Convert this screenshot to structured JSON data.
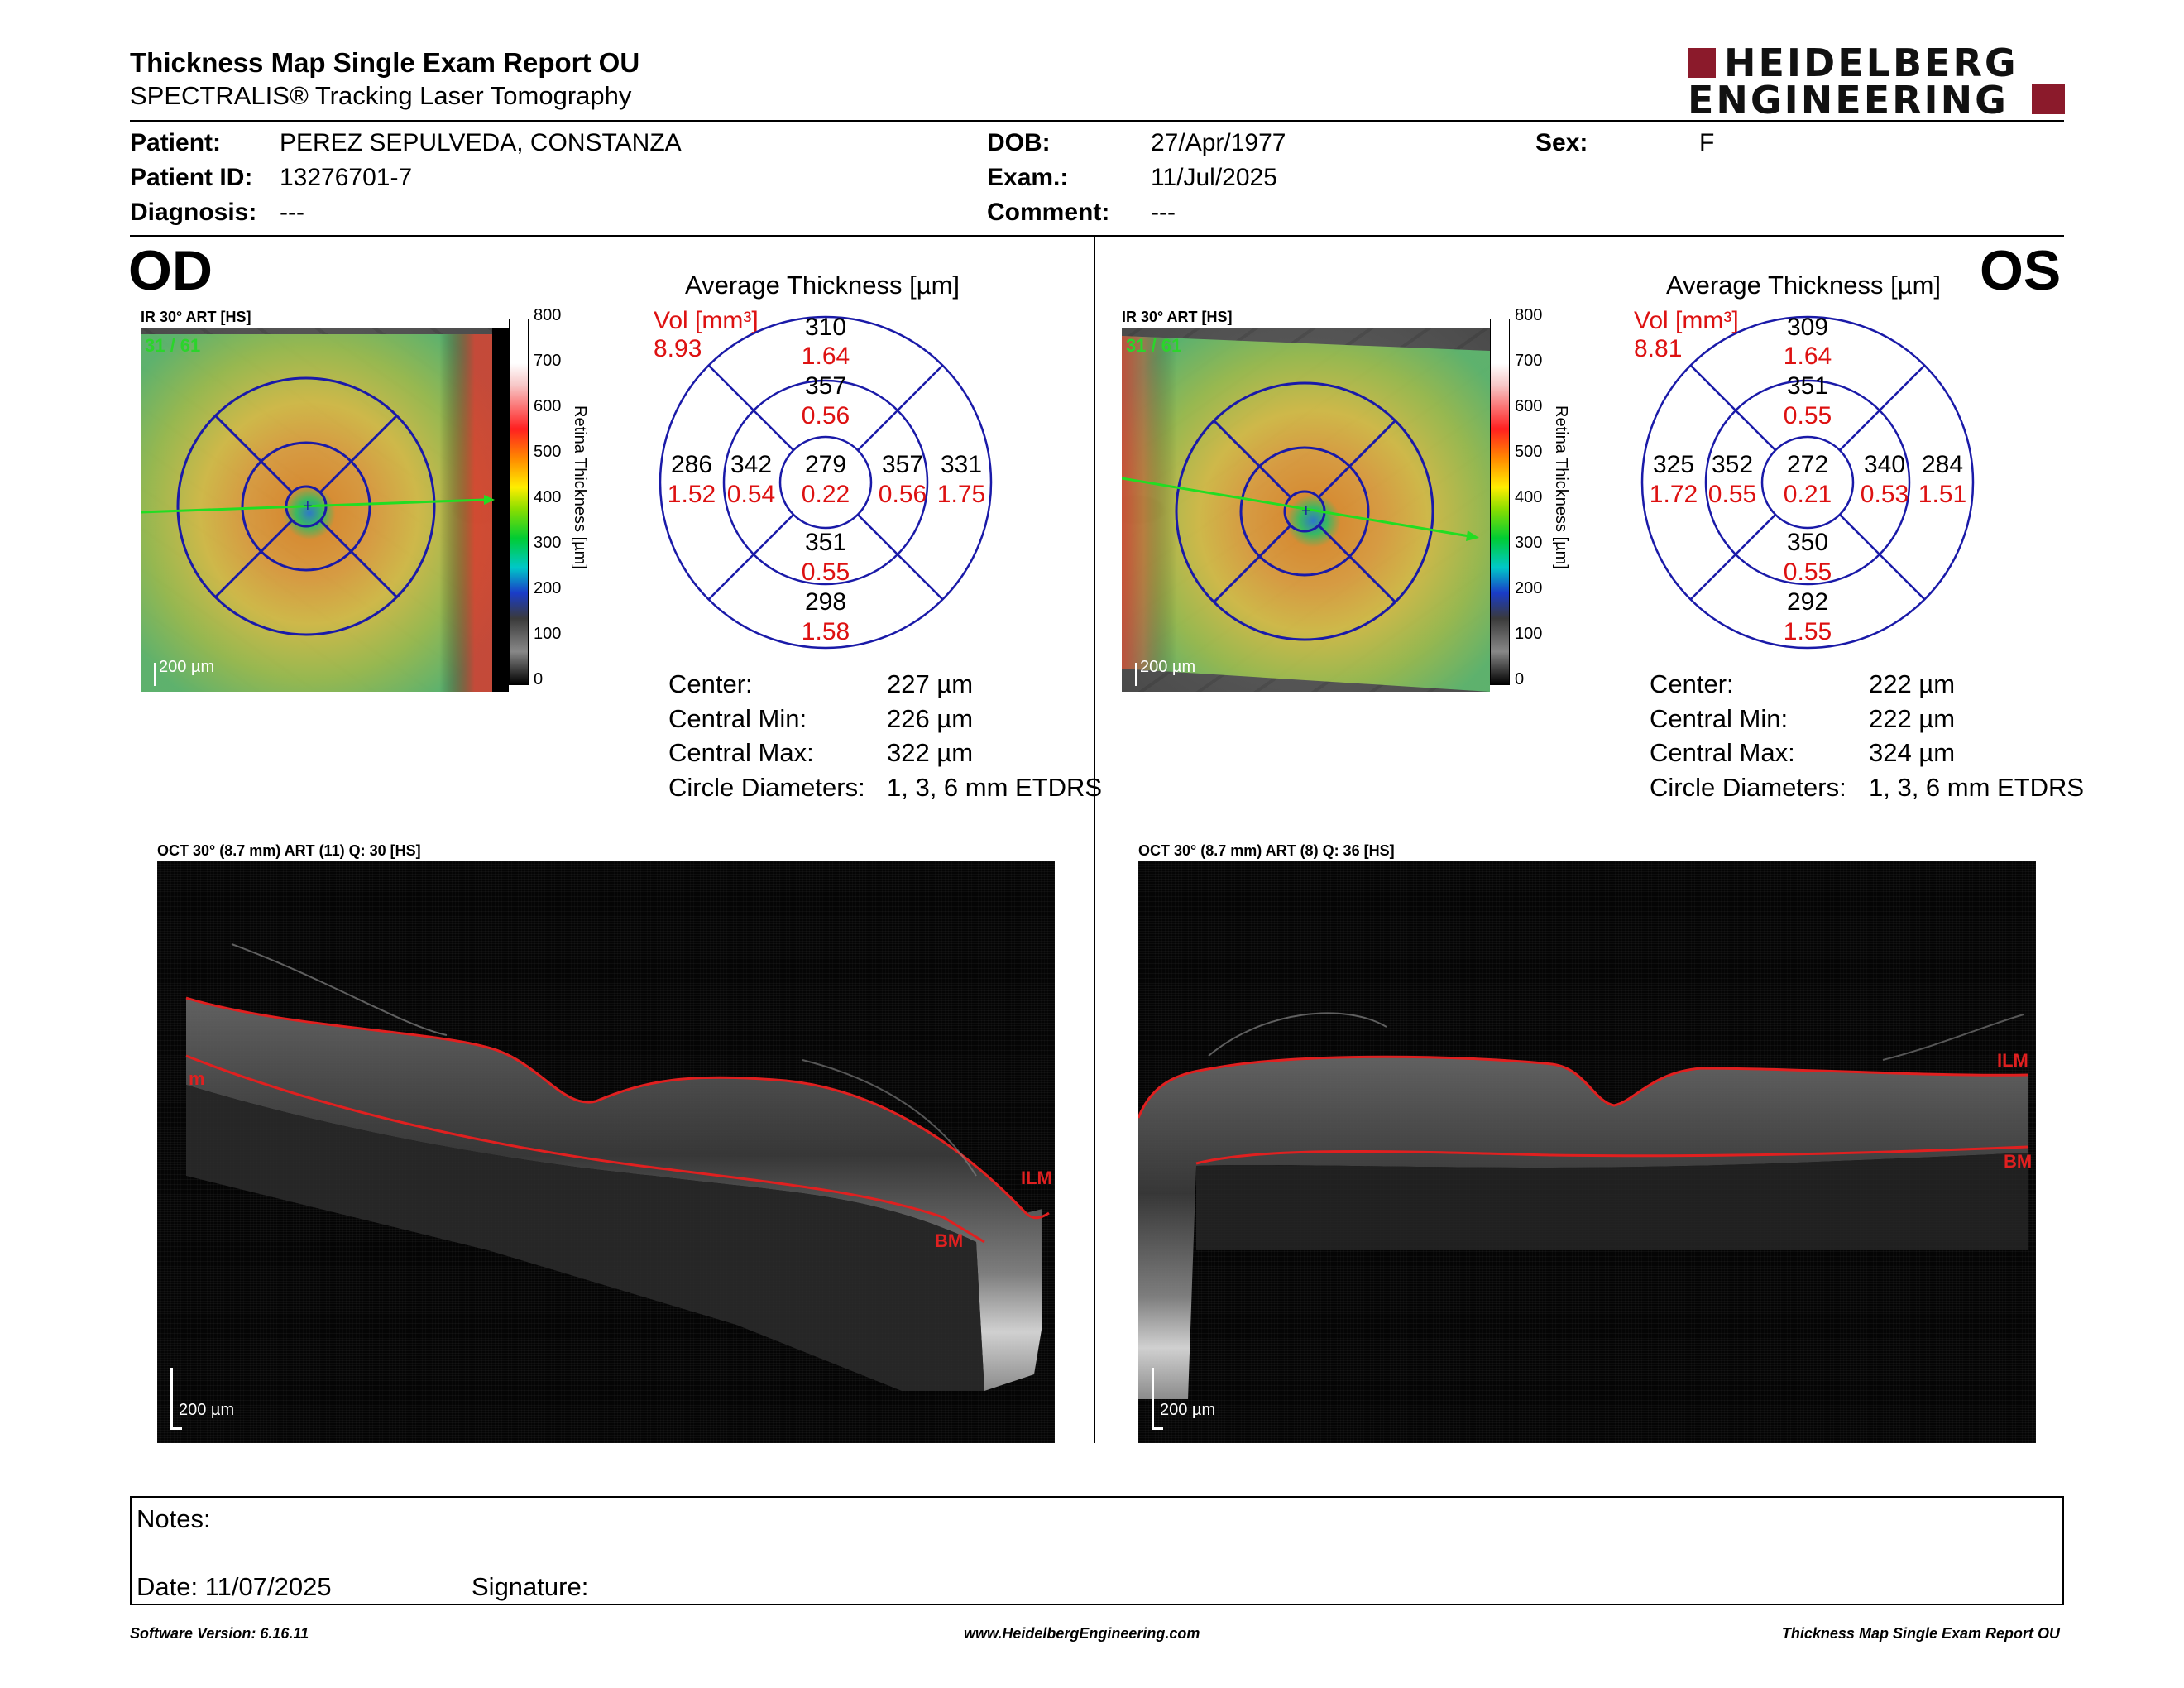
{
  "header": {
    "title": "Thickness Map Single Exam Report OU",
    "subtitle": "SPECTRALIS® Tracking Laser Tomography",
    "logo_line1": "HEIDELBERG",
    "logo_line2": "ENGINEERING",
    "brand_color": "#8b1a2b"
  },
  "patient": {
    "patient_label": "Patient:",
    "patient_value": "PEREZ SEPULVEDA, CONSTANZA",
    "id_label": "Patient ID:",
    "id_value": "13276701-7",
    "diagnosis_label": "Diagnosis:",
    "diagnosis_value": "---",
    "dob_label": "DOB:",
    "dob_value": "27/Apr/1977",
    "exam_label": "Exam.:",
    "exam_value": "11/Jul/2025",
    "comment_label": "Comment:",
    "comment_value": "---",
    "sex_label": "Sex:",
    "sex_value": "F"
  },
  "od": {
    "eye_label": "OD",
    "ir_caption": "IR 30° ART [HS]",
    "ir_overlay": "31 / 61",
    "scale_label": "200 µm",
    "colorbar_ticks": [
      "800",
      "700",
      "600",
      "500",
      "400",
      "300",
      "200",
      "100",
      "0"
    ],
    "colorbar_label": "Retina Thickness [µm]",
    "avg_title": "Average Thickness [µm]",
    "vol_label": "Vol [mm³]",
    "vol_value": "8.93",
    "etdrs": {
      "center_t": "279",
      "center_v": "0.22",
      "inner_sup_t": "357",
      "inner_sup_v": "0.56",
      "inner_inf_t": "351",
      "inner_inf_v": "0.55",
      "inner_left_t": "342",
      "inner_left_v": "0.54",
      "inner_right_t": "357",
      "inner_right_v": "0.56",
      "outer_sup_t": "310",
      "outer_sup_v": "1.64",
      "outer_inf_t": "298",
      "outer_inf_v": "1.58",
      "outer_left_t": "286",
      "outer_left_v": "1.52",
      "outer_right_t": "331",
      "outer_right_v": "1.75"
    },
    "stats": {
      "center_label": "Center:",
      "center_value": "227 µm",
      "min_label": "Central Min:",
      "min_value": "226 µm",
      "max_label": "Central Max:",
      "max_value": "322 µm",
      "diam_label": "Circle Diameters:",
      "diam_value": "1, 3, 6 mm ETDRS"
    },
    "oct_caption": "OCT 30° (8.7 mm) ART (11) Q: 30 [HS]",
    "oct_scale": "200 µm",
    "oct_labels": {
      "ilm": "ILM",
      "bm": "BM",
      "edge": "m"
    }
  },
  "os": {
    "eye_label": "OS",
    "ir_caption": "IR 30° ART [HS]",
    "ir_overlay": "31 / 61",
    "scale_label": "200 µm",
    "colorbar_ticks": [
      "800",
      "700",
      "600",
      "500",
      "400",
      "300",
      "200",
      "100",
      "0"
    ],
    "colorbar_label": "Retina Thickness [µm]",
    "avg_title": "Average Thickness [µm]",
    "vol_label": "Vol [mm³]",
    "vol_value": "8.81",
    "etdrs": {
      "center_t": "272",
      "center_v": "0.21",
      "inner_sup_t": "351",
      "inner_sup_v": "0.55",
      "inner_inf_t": "350",
      "inner_inf_v": "0.55",
      "inner_left_t": "352",
      "inner_left_v": "0.55",
      "inner_right_t": "340",
      "inner_right_v": "0.53",
      "outer_sup_t": "309",
      "outer_sup_v": "1.64",
      "outer_inf_t": "292",
      "outer_inf_v": "1.55",
      "outer_left_t": "325",
      "outer_left_v": "1.72",
      "outer_right_t": "284",
      "outer_right_v": "1.51"
    },
    "stats": {
      "center_label": "Center:",
      "center_value": "222 µm",
      "min_label": "Central Min:",
      "min_value": "222 µm",
      "max_label": "Central Max:",
      "max_value": "324 µm",
      "diam_label": "Circle Diameters:",
      "diam_value": "1, 3, 6 mm ETDRS"
    },
    "oct_caption": "OCT 30° (8.7 mm) ART (8) Q: 36 [HS]",
    "oct_scale": "200 µm",
    "oct_labels": {
      "ilm": "ILM",
      "bm": "BM"
    }
  },
  "notes": {
    "notes_label": "Notes:",
    "date_label": "Date: 11/07/2025",
    "signature_label": "Signature:"
  },
  "footer": {
    "software": "Software Version: 6.16.11",
    "website": "www.HeidelbergEngineering.com",
    "report": "Thickness Map Single Exam Report OU"
  },
  "colors": {
    "etdrs_ring": "#1a1aa8",
    "volume_red": "#dd1111",
    "segmentation_red": "#e02020",
    "scan_line_green": "#22dd22"
  }
}
